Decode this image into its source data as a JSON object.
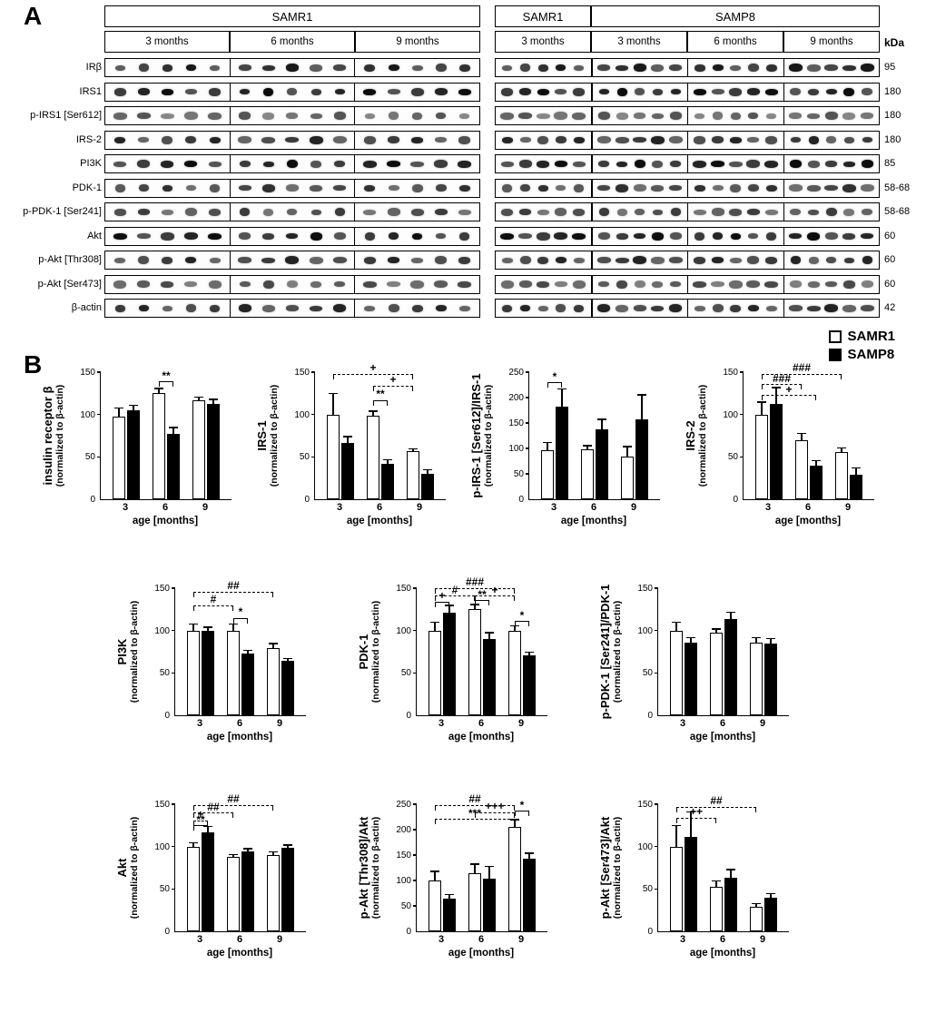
{
  "panelA": {
    "label": "A",
    "kda_header": "kDa",
    "left_block": {
      "title": "SAMR1",
      "months": [
        "3 months",
        "6 months",
        "9 months"
      ]
    },
    "right_block": {
      "titles": [
        "SAMR1",
        "SAMP8"
      ],
      "months": [
        "3 months",
        "3 months",
        "6 months",
        "9 months"
      ]
    },
    "rows": [
      {
        "label": "IRβ",
        "kda": "95"
      },
      {
        "label": "IRS1",
        "kda": "180"
      },
      {
        "label": "p-IRS1 [Ser612]",
        "kda": "180"
      },
      {
        "label": "IRS-2",
        "kda": "180"
      },
      {
        "label": "PI3K",
        "kda": "85"
      },
      {
        "label": "PDK-1",
        "kda": "58-68"
      },
      {
        "label": "p-PDK-1 [Ser241]",
        "kda": "58-68"
      },
      {
        "label": "Akt",
        "kda": "60"
      },
      {
        "label": "p-Akt [Thr308]",
        "kda": "60"
      },
      {
        "label": "p-Akt [Ser473]",
        "kda": "60"
      },
      {
        "label": "β-actin",
        "kda": "42"
      }
    ]
  },
  "panelB": {
    "label": "B",
    "legend": [
      {
        "label": "SAMR1",
        "fill": "#ffffff"
      },
      {
        "label": "SAMP8",
        "fill": "#000000"
      }
    ]
  },
  "chart_data": [
    {
      "type": "bar",
      "ylabel_main": "insulin receptor β",
      "ylabel_sub": "(normalized to β-actin)",
      "xlabel": "age [months]",
      "categories": [
        "3",
        "6",
        "9"
      ],
      "ylim": [
        0,
        150
      ],
      "yticks": [
        0,
        50,
        100,
        150
      ],
      "series": [
        {
          "name": "SAMR1",
          "fill": "#ffffff",
          "values": [
            98,
            125,
            117
          ],
          "errors": [
            10,
            6,
            4
          ]
        },
        {
          "name": "SAMP8",
          "fill": "#000000",
          "values": [
            105,
            77,
            113
          ],
          "errors": [
            6,
            8,
            5
          ]
        }
      ],
      "annotations": [
        {
          "text": "**",
          "x1": 2,
          "x2": 3,
          "y": 138,
          "style": "bracket"
        }
      ]
    },
    {
      "type": "bar",
      "ylabel_main": "IRS-1",
      "ylabel_sub": "(normalized to β-actin)",
      "xlabel": "age [months]",
      "categories": [
        "3",
        "6",
        "9"
      ],
      "ylim": [
        0,
        150
      ],
      "yticks": [
        0,
        50,
        100,
        150
      ],
      "series": [
        {
          "name": "SAMR1",
          "fill": "#ffffff",
          "values": [
            100,
            99,
            57
          ],
          "errors": [
            25,
            5,
            3
          ]
        },
        {
          "name": "SAMP8",
          "fill": "#000000",
          "values": [
            66,
            42,
            30
          ],
          "errors": [
            8,
            5,
            5
          ]
        }
      ],
      "annotations": [
        {
          "text": "+",
          "x1": 0,
          "x2": 4,
          "y": 147,
          "style": "dashed"
        },
        {
          "text": "+",
          "x1": 2,
          "x2": 4,
          "y": 133,
          "style": "dashed"
        },
        {
          "text": "**",
          "x1": 2,
          "x2": 3,
          "y": 116,
          "style": "bracket"
        }
      ]
    },
    {
      "type": "bar",
      "ylabel_main": "p-IRS-1 [Ser612]/IRS-1",
      "ylabel_sub": "(normalized to β-actin)",
      "xlabel": "age [months]",
      "categories": [
        "3",
        "6",
        "9"
      ],
      "ylim": [
        0,
        250
      ],
      "yticks": [
        0,
        50,
        100,
        150,
        200,
        250
      ],
      "series": [
        {
          "name": "SAMR1",
          "fill": "#ffffff",
          "values": [
            97,
            98,
            84
          ],
          "errors": [
            15,
            8,
            20
          ]
        },
        {
          "name": "SAMP8",
          "fill": "#000000",
          "values": [
            182,
            138,
            158
          ],
          "errors": [
            35,
            20,
            48
          ]
        }
      ],
      "annotations": [
        {
          "text": "*",
          "x1": 0,
          "x2": 1,
          "y": 228,
          "style": "bracket"
        }
      ]
    },
    {
      "type": "bar",
      "ylabel_main": "IRS-2",
      "ylabel_sub": "(normalized to β-actin)",
      "xlabel": "age [months]",
      "categories": [
        "3",
        "6",
        "9"
      ],
      "ylim": [
        0,
        150
      ],
      "yticks": [
        0,
        50,
        100,
        150
      ],
      "series": [
        {
          "name": "SAMR1",
          "fill": "#ffffff",
          "values": [
            100,
            70,
            56
          ],
          "errors": [
            15,
            8,
            5
          ]
        },
        {
          "name": "SAMP8",
          "fill": "#000000",
          "values": [
            112,
            40,
            29
          ],
          "errors": [
            20,
            6,
            8
          ]
        }
      ],
      "annotations": [
        {
          "text": "###",
          "x1": 0,
          "x2": 4,
          "y": 147,
          "style": "dashed"
        },
        {
          "text": "###",
          "x1": 0,
          "x2": 2,
          "y": 135,
          "style": "dashed"
        },
        {
          "text": "+",
          "x1": 0,
          "x2": 3,
          "y": 122,
          "style": "dashed"
        }
      ]
    },
    {
      "type": "bar",
      "ylabel_main": "PI3K",
      "ylabel_sub": "(normalized to β-actin)",
      "xlabel": "age [months]",
      "categories": [
        "3",
        "6",
        "9"
      ],
      "ylim": [
        0,
        150
      ],
      "yticks": [
        0,
        50,
        100,
        150
      ],
      "series": [
        {
          "name": "SAMR1",
          "fill": "#ffffff",
          "values": [
            100,
            100,
            79
          ],
          "errors": [
            8,
            8,
            6
          ]
        },
        {
          "name": "SAMP8",
          "fill": "#000000",
          "values": [
            100,
            73,
            64
          ],
          "errors": [
            4,
            4,
            3
          ]
        }
      ],
      "annotations": [
        {
          "text": "##",
          "x1": 0,
          "x2": 4,
          "y": 145,
          "style": "dashed"
        },
        {
          "text": "#",
          "x1": 0,
          "x2": 2,
          "y": 129,
          "style": "dashed"
        },
        {
          "text": "*",
          "x1": 2,
          "x2": 3,
          "y": 114,
          "style": "bracket"
        }
      ]
    },
    {
      "type": "bar",
      "ylabel_main": "PDK-1",
      "ylabel_sub": "(normalized to β-actin)",
      "xlabel": "age [months]",
      "categories": [
        "3",
        "6",
        "9"
      ],
      "ylim": [
        0,
        150
      ],
      "yticks": [
        0,
        50,
        100,
        150
      ],
      "series": [
        {
          "name": "SAMR1",
          "fill": "#ffffff",
          "values": [
            100,
            125,
            100
          ],
          "errors": [
            10,
            6,
            6
          ]
        },
        {
          "name": "SAMP8",
          "fill": "#000000",
          "values": [
            121,
            90,
            71
          ],
          "errors": [
            9,
            8,
            4
          ]
        }
      ],
      "annotations": [
        {
          "text": "###",
          "x1": 0,
          "x2": 4,
          "y": 149,
          "style": "dashed"
        },
        {
          "text": "#",
          "x1": 0,
          "x2": 2,
          "y": 140,
          "style": "dashed"
        },
        {
          "text": "+",
          "x1": 2,
          "x2": 4,
          "y": 140,
          "style": "dashed"
        },
        {
          "text": "+",
          "x1": 0,
          "x2": 1,
          "y": 133,
          "style": "bracket"
        },
        {
          "text": "**",
          "x1": 2,
          "x2": 3,
          "y": 135,
          "style": "bracket"
        },
        {
          "text": "*",
          "x1": 4,
          "x2": 5,
          "y": 110,
          "style": "bracket"
        }
      ]
    },
    {
      "type": "bar",
      "ylabel_main": "p-PDK-1 [Ser241]/PDK-1",
      "ylabel_sub": "(normalized to β-actin)",
      "xlabel": "age [months]",
      "categories": [
        "3",
        "6",
        "9"
      ],
      "ylim": [
        0,
        150
      ],
      "yticks": [
        0,
        50,
        100,
        150
      ],
      "series": [
        {
          "name": "SAMR1",
          "fill": "#ffffff",
          "values": [
            100,
            97,
            86
          ],
          "errors": [
            10,
            5,
            6
          ]
        },
        {
          "name": "SAMP8",
          "fill": "#000000",
          "values": [
            86,
            114,
            85
          ],
          "errors": [
            6,
            8,
            6
          ]
        }
      ],
      "annotations": []
    },
    {
      "type": "bar",
      "ylabel_main": "Akt",
      "ylabel_sub": "(normalized to β-actin)",
      "xlabel": "age [months]",
      "categories": [
        "3",
        "6",
        "9"
      ],
      "ylim": [
        0,
        150
      ],
      "yticks": [
        0,
        50,
        100,
        150
      ],
      "series": [
        {
          "name": "SAMR1",
          "fill": "#ffffff",
          "values": [
            100,
            88,
            90
          ],
          "errors": [
            5,
            3,
            4
          ]
        },
        {
          "name": "SAMP8",
          "fill": "#000000",
          "values": [
            117,
            94,
            99
          ],
          "errors": [
            7,
            4,
            3
          ]
        }
      ],
      "annotations": [
        {
          "text": "##",
          "x1": 0,
          "x2": 4,
          "y": 148,
          "style": "dashed"
        },
        {
          "text": "##",
          "x1": 0,
          "x2": 2,
          "y": 139,
          "style": "dashed"
        },
        {
          "text": "+",
          "x1": 0,
          "x2": 1,
          "y": 130,
          "style": "dashed"
        },
        {
          "text": "**",
          "x1": 0,
          "x2": 1,
          "y": 124,
          "style": "bracket"
        }
      ]
    },
    {
      "type": "bar",
      "ylabel_main": "p-Akt [Thr308]/Akt",
      "ylabel_sub": "(normalized to β-actin)",
      "xlabel": "age [months]",
      "categories": [
        "3",
        "6",
        "9"
      ],
      "ylim": [
        0,
        250
      ],
      "yticks": [
        0,
        50,
        100,
        150,
        200,
        250
      ],
      "series": [
        {
          "name": "SAMR1",
          "fill": "#ffffff",
          "values": [
            100,
            115,
            205
          ],
          "errors": [
            18,
            18,
            15
          ]
        },
        {
          "name": "SAMP8",
          "fill": "#000000",
          "values": [
            65,
            103,
            142
          ],
          "errors": [
            8,
            25,
            12
          ]
        }
      ],
      "annotations": [
        {
          "text": "##",
          "x1": 0,
          "x2": 4,
          "y": 247,
          "style": "dashed"
        },
        {
          "text": "+++",
          "x1": 2,
          "x2": 4,
          "y": 233,
          "style": "dashed"
        },
        {
          "text": "***",
          "x1": 0,
          "x2": 4,
          "y": 219,
          "style": "dashed"
        },
        {
          "text": "*",
          "x1": 4,
          "x2": 5,
          "y": 235,
          "style": "bracket"
        }
      ]
    },
    {
      "type": "bar",
      "ylabel_main": "p-Akt [Ser473]/Akt",
      "ylabel_sub": "(normalized to β-actin)",
      "xlabel": "age [months]",
      "categories": [
        "3",
        "6",
        "9"
      ],
      "ylim": [
        0,
        150
      ],
      "yticks": [
        0,
        50,
        100,
        150
      ],
      "series": [
        {
          "name": "SAMR1",
          "fill": "#ffffff",
          "values": [
            100,
            52,
            29
          ],
          "errors": [
            25,
            8,
            4
          ]
        },
        {
          "name": "SAMP8",
          "fill": "#000000",
          "values": [
            111,
            63,
            40
          ],
          "errors": [
            30,
            10,
            5
          ]
        }
      ],
      "annotations": [
        {
          "text": "##",
          "x1": 0,
          "x2": 4,
          "y": 146,
          "style": "dashed"
        },
        {
          "text": "++",
          "x1": 0,
          "x2": 2,
          "y": 133,
          "style": "dashed"
        }
      ]
    }
  ]
}
